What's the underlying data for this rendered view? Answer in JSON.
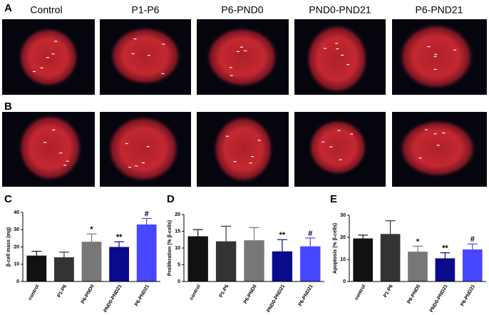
{
  "figure": {
    "panel_labels": [
      "A",
      "B",
      "C",
      "D",
      "E"
    ],
    "column_headers": [
      "Control",
      "P1-P6",
      "P6-PND0",
      "PND0-PND21",
      "P6-PND21"
    ]
  },
  "chart_data": [
    {
      "type": "bar",
      "ylabel": "β-cell mass (mg)",
      "categories": [
        "control",
        "P1-P6",
        "P6-PND0",
        "PND0-PND21",
        "P6-PND21"
      ],
      "values": [
        15,
        14,
        23,
        20,
        33
      ],
      "errors": [
        2.5,
        3,
        4.5,
        3,
        3.5
      ],
      "annotations": [
        null,
        null,
        "*",
        "**",
        "#"
      ],
      "colors": [
        "#111111",
        "#333333",
        "#777777",
        "#0a0a8c",
        "#4747ff"
      ],
      "ylim": [
        0,
        40
      ],
      "yticks": [
        0,
        10,
        20,
        30,
        40
      ]
    },
    {
      "type": "bar",
      "ylabel": "Proliferation (% β-cells)",
      "categories": [
        "control",
        "P1-P6",
        "P6-PND0",
        "PND0-PND21",
        "P6-PND21"
      ],
      "values": [
        13.5,
        12,
        12.3,
        9,
        10.5
      ],
      "errors": [
        2,
        4.5,
        3.8,
        3.5,
        2.5
      ],
      "annotations": [
        null,
        null,
        null,
        "**",
        "#"
      ],
      "colors": [
        "#111111",
        "#333333",
        "#777777",
        "#0a0a8c",
        "#4747ff"
      ],
      "ylim": [
        0,
        20
      ],
      "yticks": [
        0,
        5,
        10,
        15,
        20
      ]
    },
    {
      "type": "bar",
      "ylabel": "Apoptosis (% β-cells)",
      "categories": [
        "control",
        "P1-P6",
        "P6-PND0",
        "PND0-PND21",
        "P6-PND21"
      ],
      "values": [
        19.5,
        21.5,
        13.5,
        10.5,
        14.5
      ],
      "errors": [
        1.5,
        6,
        2.5,
        2.5,
        2.5
      ],
      "annotations": [
        null,
        null,
        "*",
        "**",
        "#"
      ],
      "colors": [
        "#111111",
        "#333333",
        "#777777",
        "#0a0a8c",
        "#4747ff"
      ],
      "ylim": [
        0,
        30
      ],
      "yticks": [
        0,
        10,
        20,
        30
      ]
    }
  ]
}
